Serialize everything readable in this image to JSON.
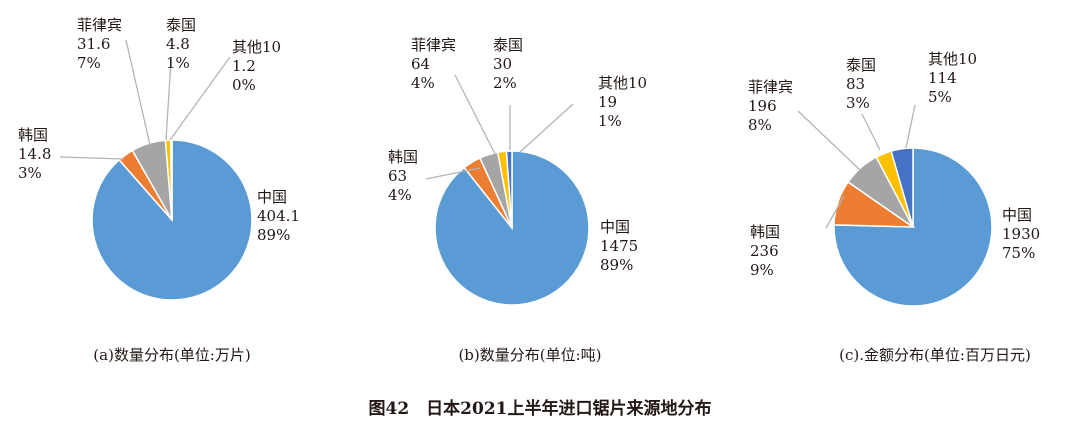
{
  "figure_caption": "图42　日本2021上半年进口锯片来源地分布",
  "chart_data": [
    {
      "type": "pie",
      "caption": "(a)数量分布(单位:万片)",
      "slices": [
        {
          "label": "中国",
          "value": "404.1",
          "percent": "89%",
          "v": 404.1,
          "color": "#5b9bd5"
        },
        {
          "label": "韩国",
          "value": "14.8",
          "percent": "3%",
          "v": 14.8,
          "color": "#ed7d31"
        },
        {
          "label": "菲律宾",
          "value": "31.6",
          "percent": "7%",
          "v": 31.6,
          "color": "#a5a5a5"
        },
        {
          "label": "泰国",
          "value": "4.8",
          "percent": "1%",
          "v": 4.8,
          "color": "#ffc000"
        },
        {
          "label": "其他10",
          "value": "1.2",
          "percent": "0%",
          "v": 1.2,
          "color": "#4472c4"
        }
      ]
    },
    {
      "type": "pie",
      "caption": "(b)数量分布(单位:吨)",
      "slices": [
        {
          "label": "中国",
          "value": "1475",
          "percent": "89%",
          "v": 1475,
          "color": "#5b9bd5"
        },
        {
          "label": "韩国",
          "value": "63",
          "percent": "4%",
          "v": 63,
          "color": "#ed7d31"
        },
        {
          "label": "菲律宾",
          "value": "64",
          "percent": "4%",
          "v": 64,
          "color": "#a5a5a5"
        },
        {
          "label": "泰国",
          "value": "30",
          "percent": "2%",
          "v": 30,
          "color": "#ffc000"
        },
        {
          "label": "其他10",
          "value": "19",
          "percent": "1%",
          "v": 19,
          "color": "#4472c4"
        }
      ]
    },
    {
      "type": "pie",
      "caption": "(c).金额分布(单位:百万日元)",
      "slices": [
        {
          "label": "中国",
          "value": "1930",
          "percent": "75%",
          "v": 1930,
          "color": "#5b9bd5"
        },
        {
          "label": "韩国",
          "value": "236",
          "percent": "9%",
          "v": 236,
          "color": "#ed7d31"
        },
        {
          "label": "菲律宾",
          "value": "196",
          "percent": "8%",
          "v": 196,
          "color": "#a5a5a5"
        },
        {
          "label": "泰国",
          "value": "83",
          "percent": "3%",
          "v": 83,
          "color": "#ffc000"
        },
        {
          "label": "其他10",
          "value": "114",
          "percent": "5%",
          "v": 114,
          "color": "#4472c4"
        }
      ]
    }
  ]
}
